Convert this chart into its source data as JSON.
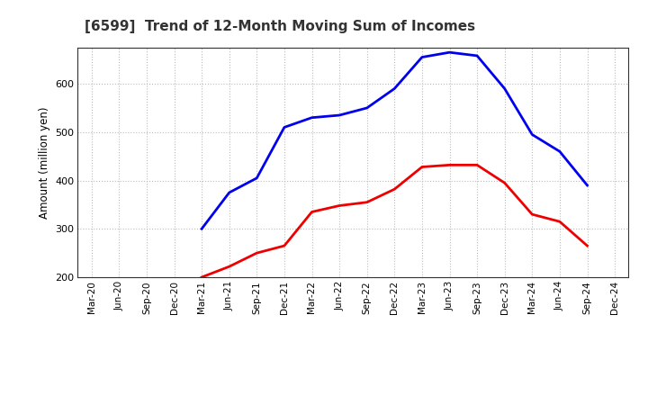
{
  "title": "[6599]  Trend of 12-Month Moving Sum of Incomes",
  "ylabel": "Amount (million yen)",
  "ylim": [
    200,
    675
  ],
  "yticks": [
    200,
    300,
    400,
    500,
    600
  ],
  "background_color": "#ffffff",
  "plot_background_color": "#ffffff",
  "grid_color": "#bbbbbb",
  "ordinary_income_color": "#0000ee",
  "net_income_color": "#ee0000",
  "line_width": 2.0,
  "x_labels": [
    "Mar-20",
    "Jun-20",
    "Sep-20",
    "Dec-20",
    "Mar-21",
    "Jun-21",
    "Sep-21",
    "Dec-21",
    "Mar-22",
    "Jun-22",
    "Sep-22",
    "Dec-22",
    "Mar-23",
    "Jun-23",
    "Sep-23",
    "Dec-23",
    "Mar-24",
    "Jun-24",
    "Sep-24",
    "Dec-24"
  ],
  "ordinary_income": [
    null,
    null,
    null,
    null,
    300,
    375,
    405,
    510,
    530,
    535,
    550,
    590,
    655,
    665,
    658,
    590,
    495,
    460,
    390,
    null
  ],
  "net_income": [
    null,
    null,
    null,
    null,
    200,
    222,
    250,
    265,
    335,
    348,
    355,
    382,
    428,
    432,
    432,
    395,
    330,
    315,
    265,
    null
  ]
}
